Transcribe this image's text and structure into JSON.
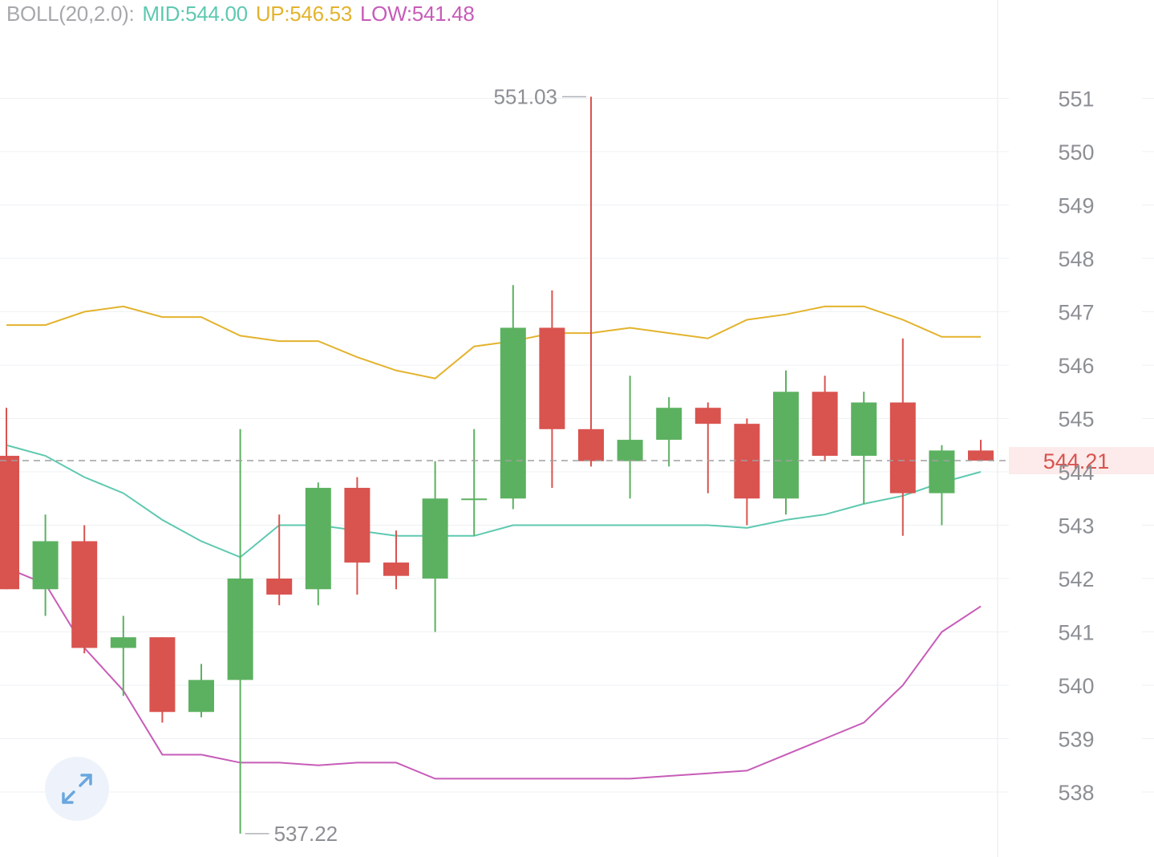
{
  "indicator": {
    "name_label": "BOLL(20,2.0):",
    "mid_label": "MID:544.00",
    "up_label": "UP:546.53",
    "low_label": "LOW:541.48"
  },
  "colors": {
    "up": "#5cb160",
    "down": "#d9534f",
    "mid": "#5ec9b0",
    "upper": "#e3b32d",
    "lower": "#c75cb8",
    "grid": "#eef0f3",
    "axis_text": "#8c8f94",
    "legend_name": "#a6a8ab",
    "price_line": "#a0a0a0",
    "price_tag_bg": "#fcebea",
    "price_tag_text": "#d9534f"
  },
  "expand_button": {
    "icon": "expand-arrows-icon"
  },
  "chart_data": {
    "type": "candlestick",
    "y_axis": {
      "ticks": [
        551,
        550,
        549,
        548,
        547,
        546,
        545,
        544,
        543,
        542,
        541,
        540,
        539,
        538
      ],
      "position": "right"
    },
    "last_price": {
      "value": 544.21,
      "label": "544.21"
    },
    "max_annotation": {
      "value": 551.03,
      "label": "551.03",
      "index": 15
    },
    "min_annotation": {
      "value": 537.22,
      "label": "537.22",
      "index": 6
    },
    "candles": [
      {
        "o": 544.3,
        "h": 545.2,
        "l": 541.8,
        "c": 541.8
      },
      {
        "o": 541.8,
        "h": 543.2,
        "l": 541.3,
        "c": 542.7
      },
      {
        "o": 542.7,
        "h": 543.0,
        "l": 540.6,
        "c": 540.7
      },
      {
        "o": 540.7,
        "h": 541.3,
        "l": 539.8,
        "c": 540.9
      },
      {
        "o": 540.9,
        "h": 540.9,
        "l": 539.3,
        "c": 539.5
      },
      {
        "o": 539.5,
        "h": 540.4,
        "l": 539.4,
        "c": 540.1
      },
      {
        "o": 540.1,
        "h": 544.8,
        "l": 537.22,
        "c": 542.0
      },
      {
        "o": 542.0,
        "h": 543.2,
        "l": 541.5,
        "c": 541.7
      },
      {
        "o": 541.8,
        "h": 543.8,
        "l": 541.5,
        "c": 543.7
      },
      {
        "o": 543.7,
        "h": 543.9,
        "l": 541.7,
        "c": 542.3
      },
      {
        "o": 542.3,
        "h": 542.9,
        "l": 541.8,
        "c": 542.05
      },
      {
        "o": 542.0,
        "h": 544.2,
        "l": 541.0,
        "c": 543.5
      },
      {
        "o": 543.5,
        "h": 544.8,
        "l": 542.8,
        "c": 543.5
      },
      {
        "o": 543.5,
        "h": 547.5,
        "l": 543.3,
        "c": 546.7
      },
      {
        "o": 546.7,
        "h": 547.4,
        "l": 543.7,
        "c": 544.8
      },
      {
        "o": 544.8,
        "h": 551.03,
        "l": 544.1,
        "c": 544.2
      },
      {
        "o": 544.2,
        "h": 545.8,
        "l": 543.5,
        "c": 544.6
      },
      {
        "o": 544.6,
        "h": 545.4,
        "l": 544.1,
        "c": 545.2
      },
      {
        "o": 545.2,
        "h": 545.3,
        "l": 543.6,
        "c": 544.9
      },
      {
        "o": 544.9,
        "h": 545.0,
        "l": 543.0,
        "c": 543.5
      },
      {
        "o": 543.5,
        "h": 545.9,
        "l": 543.2,
        "c": 545.5
      },
      {
        "o": 545.5,
        "h": 545.8,
        "l": 544.2,
        "c": 544.3
      },
      {
        "o": 544.3,
        "h": 545.5,
        "l": 543.4,
        "c": 545.3
      },
      {
        "o": 545.3,
        "h": 546.5,
        "l": 542.8,
        "c": 543.6
      },
      {
        "o": 543.6,
        "h": 544.5,
        "l": 543.0,
        "c": 544.4
      },
      {
        "o": 544.4,
        "h": 544.6,
        "l": 544.2,
        "c": 544.21
      }
    ],
    "boll_mid": [
      544.5,
      544.3,
      543.9,
      543.6,
      543.1,
      542.7,
      542.4,
      543.0,
      543.0,
      542.9,
      542.8,
      542.8,
      542.8,
      543.0,
      543.0,
      543.0,
      543.0,
      543.0,
      543.0,
      542.95,
      543.1,
      543.2,
      543.4,
      543.55,
      543.8,
      544.0
    ],
    "boll_upper": [
      546.75,
      546.75,
      547.0,
      547.1,
      546.9,
      546.9,
      546.55,
      546.45,
      546.45,
      546.15,
      545.9,
      545.75,
      546.35,
      546.45,
      546.6,
      546.6,
      546.7,
      546.6,
      546.5,
      546.85,
      546.95,
      547.1,
      547.1,
      546.85,
      546.53,
      546.53
    ],
    "boll_lower": [
      542.2,
      541.9,
      540.7,
      539.9,
      538.7,
      538.7,
      538.55,
      538.55,
      538.5,
      538.55,
      538.55,
      538.25,
      538.25,
      538.25,
      538.25,
      538.25,
      538.25,
      538.3,
      538.35,
      538.4,
      538.7,
      539.0,
      539.3,
      540.0,
      541.0,
      541.48
    ]
  }
}
